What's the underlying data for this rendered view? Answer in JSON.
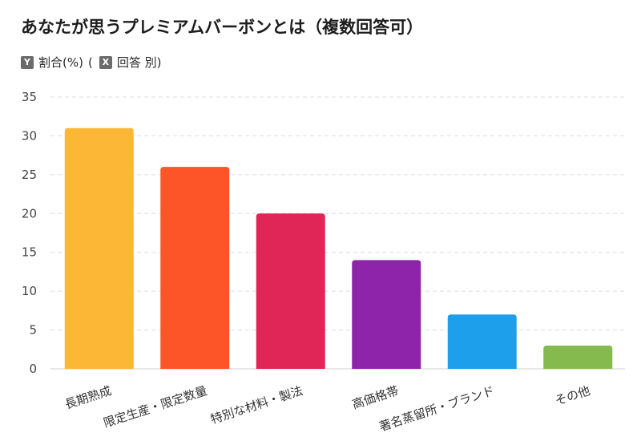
{
  "title": "あなたが思うプレミアムバーボンとは（複数回答可）",
  "axis_note": {
    "y_badge": "Y",
    "y_label": "割合(%)",
    "open_paren": "(",
    "x_badge": "X",
    "x_label": "回答 別)"
  },
  "chart_data": {
    "type": "bar",
    "categories": [
      "長期熟成",
      "限定生産・限定数量",
      "特別な材料・製法",
      "高価格帯",
      "著名蒸留所・ブランド",
      "その他"
    ],
    "values": [
      31,
      26,
      20,
      14,
      7,
      3
    ],
    "colors": [
      "#FBB735",
      "#FD5428",
      "#E02657",
      "#8E24AA",
      "#1E9FEB",
      "#85BB4E"
    ],
    "ylim": [
      0,
      35
    ],
    "yticks": [
      0,
      5,
      10,
      15,
      20,
      25,
      30,
      35
    ],
    "grid": true,
    "legend": "none"
  }
}
